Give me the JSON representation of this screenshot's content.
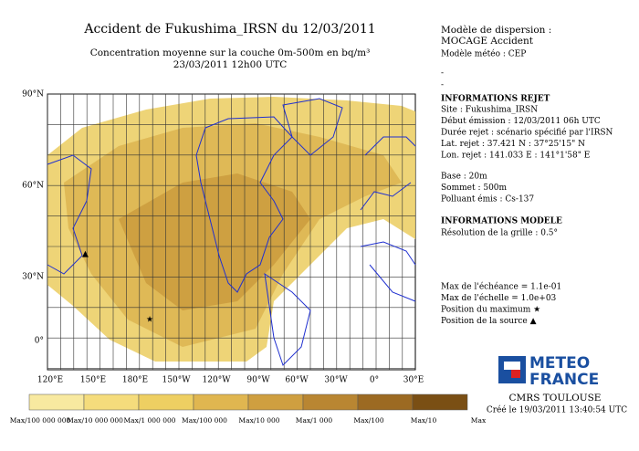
{
  "title": "Accident de Fukushima_IRSN du 12/03/2011",
  "subtitle": "Concentration moyenne sur la couche 0m-500m en bq/m³",
  "date": "23/03/2011 12h00 UTC",
  "map": {
    "lat_labels": [
      "90°N",
      "60°N",
      "30°N",
      "0°"
    ],
    "lon_labels": [
      "120°E",
      "150°E",
      "180°E",
      "150°W",
      "120°W",
      "90°W",
      "60°W",
      "30°W",
      "0°",
      "30°E"
    ]
  },
  "colorbar": {
    "colors": [
      "#f8e9a0",
      "#f5dc7c",
      "#eecf62",
      "#e0b650",
      "#cf9f40",
      "#b98632",
      "#9c6a22",
      "#7a4f14"
    ],
    "labels": [
      "Max/100 000 000",
      "Max/10 000 000",
      "Max/1 000 000",
      "Max/100 000",
      "Max/10 000",
      "Max/1 000",
      "Max/100",
      "Max/10",
      "Max"
    ]
  },
  "panel": {
    "model_title": "Modèle de dispersion :",
    "model_name": "MOCAGE Accident",
    "meteo": "Modèle météo : CEP",
    "dashes": [
      "-",
      "-"
    ],
    "release_heading": "INFORMATIONS REJET",
    "release_lines": [
      "Site : Fukushima_IRSN",
      "Début émission : 12/03/2011 06h UTC",
      "Durée rejet : scénario spécifié par l'IRSN",
      "Lat. rejet : 37.421 N : 37°25'15\" N",
      "Lon. rejet : 141.033 E : 141°1'58\" E"
    ],
    "source_lines": [
      "Base : 20m",
      "Sommet : 500m",
      "Polluant émis : Cs-137"
    ],
    "model_heading": "INFORMATIONS MODELE",
    "model_lines": [
      "Résolution de la grille : 0.5°"
    ],
    "max_lines": [
      "Max de l'échéance = 1.1e-01",
      "Max de l'échelle = 1.0e+03",
      "Position du maximum ★",
      "Position de la source ▲"
    ]
  },
  "logo": {
    "line1": "METEO",
    "line2": "FRANCE",
    "line3": "CMRS TOULOUSE"
  },
  "created": "Créé le 19/03/2011 13:40:54 UTC"
}
